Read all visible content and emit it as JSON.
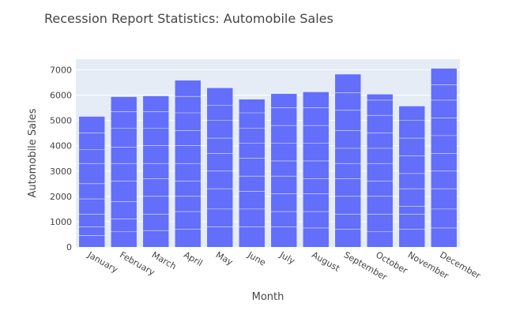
{
  "chart_data": {
    "type": "bar",
    "title": "Recession Report Statistics: Automobile Sales",
    "xlabel": "Month",
    "ylabel": "Automobile Sales",
    "categories": [
      "January",
      "February",
      "March",
      "April",
      "May",
      "June",
      "July",
      "August",
      "September",
      "October",
      "November",
      "December"
    ],
    "values": [
      5150,
      5930,
      5960,
      6580,
      6280,
      5830,
      6050,
      6120,
      6820,
      6030,
      5560,
      7050
    ],
    "segments": [
      [
        450,
        800,
        1300,
        1900,
        2500,
        3300,
        3850,
        4500
      ],
      [
        600,
        1100,
        1800,
        2600,
        3300,
        3950,
        4700,
        5350
      ],
      [
        650,
        1300,
        2000,
        2700,
        3300,
        4000,
        4700,
        5350
      ],
      [
        700,
        1400,
        2000,
        2600,
        3300,
        4000,
        4600,
        5300,
        5950
      ],
      [
        800,
        1500,
        2300,
        3000,
        3700,
        4300,
        5000,
        5600
      ],
      [
        800,
        1500,
        2200,
        2800,
        3500,
        4100,
        4700,
        5300
      ],
      [
        800,
        1400,
        2100,
        2800,
        3400,
        4100,
        4800,
        5500
      ],
      [
        750,
        1400,
        2100,
        2700,
        3400,
        4100,
        4800,
        5500
      ],
      [
        700,
        1300,
        2000,
        2700,
        3300,
        3900,
        4600,
        5400,
        6100
      ],
      [
        600,
        1300,
        2000,
        2600,
        3300,
        3900,
        4500,
        5200,
        5800
      ],
      [
        700,
        1300,
        1600,
        2300,
        2900,
        3600,
        4300,
        5000
      ],
      [
        750,
        1500,
        2300,
        3000,
        3700,
        4400,
        5100,
        5800,
        6400
      ]
    ],
    "yticks": [
      0,
      1000,
      2000,
      3000,
      4000,
      5000,
      6000,
      7000
    ],
    "ylim": [
      0,
      7420
    ],
    "grid": true,
    "colors": {
      "bar": "#636efa",
      "plot_bg": "#e5ecf6",
      "grid": "#ffffff",
      "text": "#444444"
    }
  }
}
